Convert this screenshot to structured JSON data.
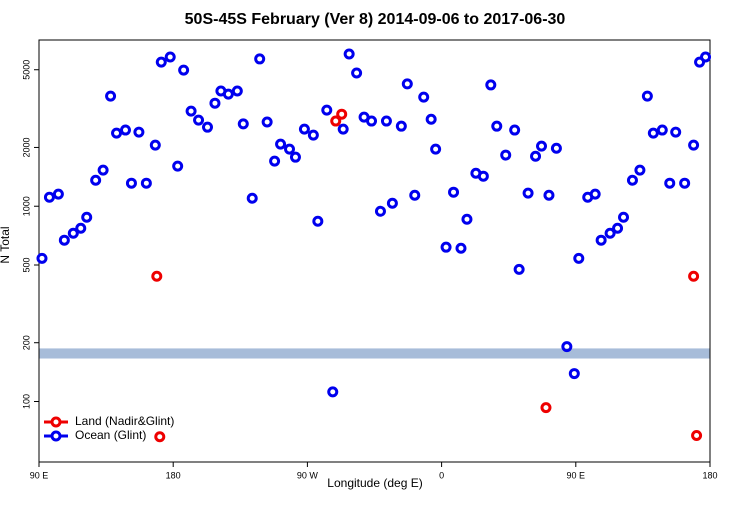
{
  "chart_data": {
    "type": "scatter",
    "title": "50S-45S February (Ver 8)   2014-09-06 to 2017-06-30",
    "xlabel": "Longitude (deg E)",
    "ylabel": "N Total",
    "xlim": [
      90,
      540
    ],
    "ylim": [
      49,
      7100
    ],
    "log_y": true,
    "legend": "lower left",
    "xticks": [
      {
        "value": 90,
        "label": "90 E"
      },
      180,
      {
        "value": 270,
        "label": "90 W"
      },
      {
        "value": 360,
        "label": "0"
      },
      {
        "value": 450,
        "label": "90 E"
      },
      {
        "value": 540,
        "label": "180"
      }
    ],
    "yticks": [
      100,
      200,
      500,
      1000,
      2000,
      5000
    ],
    "band": {
      "range": [
        166,
        187
      ],
      "color": "#a7bcd9"
    },
    "series": [
      {
        "name": "Land (Nadir&Glint)",
        "color": "#ee0000",
        "x": [
          169,
          289,
          293,
          430,
          171,
          529,
          531
        ],
        "values": [
          438,
          2730,
          2960,
          93,
          66,
          438,
          67
        ]
      },
      {
        "name": "Ocean (Glint)",
        "color": "#0000ee",
        "x": [
          92,
          97,
          103,
          107,
          113,
          118,
          122,
          128,
          133,
          138,
          142,
          148,
          152,
          157,
          162,
          168,
          172,
          178,
          183,
          187,
          192,
          197,
          203,
          208,
          212,
          217,
          223,
          227,
          233,
          238,
          243,
          248,
          252,
          258,
          262,
          268,
          274,
          277,
          283,
          287,
          294,
          298,
          303,
          308,
          313,
          319,
          323,
          327,
          333,
          337,
          342,
          348,
          353,
          356,
          363,
          368,
          373,
          377,
          383,
          388,
          393,
          397,
          403,
          409,
          412,
          418,
          423,
          427,
          432,
          437,
          444,
          449,
          452,
          458,
          463,
          467,
          473,
          478,
          482,
          488,
          493,
          498,
          502,
          508,
          513,
          517,
          523,
          529,
          533,
          537
        ],
        "values": [
          541,
          1112,
          1153,
          670,
          727,
          771,
          878,
          1359,
          1530,
          3665,
          2367,
          2455,
          1312,
          2395,
          1312,
          2056,
          5470,
          5810,
          1604,
          4980,
          3070,
          2760,
          2540,
          3370,
          3890,
          3750,
          3890,
          2640,
          1099,
          5680,
          2700,
          1702,
          2080,
          1960,
          1783,
          2483,
          2312,
          838,
          3105,
          112,
          2483,
          6020,
          4810,
          2860,
          2730,
          942,
          2730,
          1036,
          2570,
          4230,
          1138,
          3620,
          2790,
          1960,
          617,
          1180,
          609,
          858,
          1476,
          1425,
          4180,
          2570,
          1828,
          2455,
          475,
          1167,
          1803,
          2032,
          1138,
          1982,
          191,
          139,
          541,
          1112,
          1153,
          670,
          727,
          771,
          878,
          1359,
          1530,
          3665,
          2367,
          2455,
          1312,
          2395,
          1312,
          2056,
          5470,
          5810
        ]
      }
    ]
  }
}
